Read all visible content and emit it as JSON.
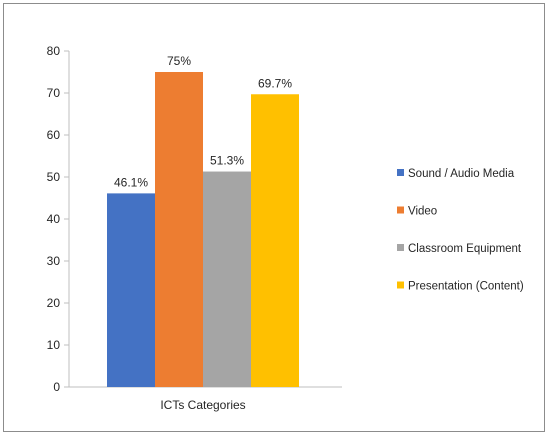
{
  "chart_data": {
    "type": "bar",
    "categories": [
      "ICTs Categories"
    ],
    "series": [
      {
        "name": "Sound / Audio Media",
        "values": [
          46.1
        ],
        "label": "46.1%",
        "color": "#4472C4"
      },
      {
        "name": "Video",
        "values": [
          75
        ],
        "label": "75%",
        "color": "#ED7D31"
      },
      {
        "name": "Classroom Equipment",
        "values": [
          51.3
        ],
        "label": "51.3%",
        "color": "#A5A5A5"
      },
      {
        "name": "Presentation (Content)",
        "values": [
          69.7
        ],
        "label": "69.7%",
        "color": "#FFC000"
      }
    ],
    "ylim": [
      0,
      80
    ],
    "yticks": [
      0,
      10,
      20,
      30,
      40,
      50,
      60,
      70,
      80
    ],
    "grid": false,
    "legend": "right"
  }
}
